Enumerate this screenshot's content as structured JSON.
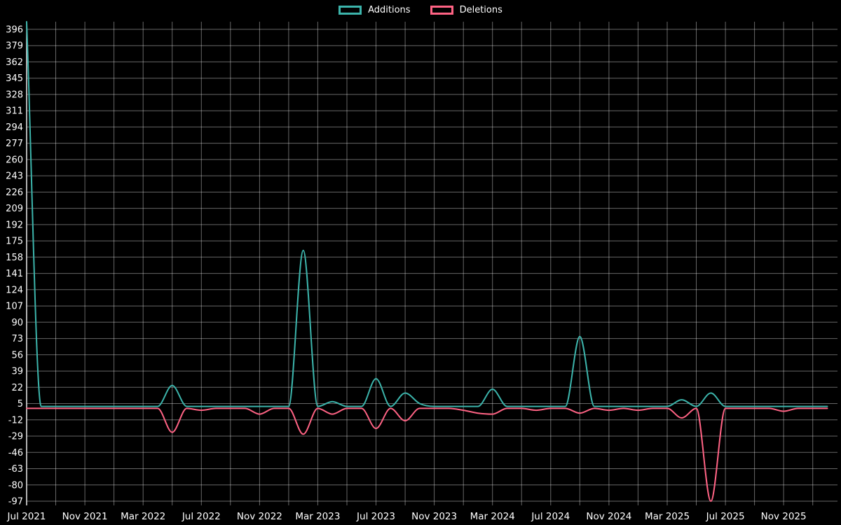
{
  "chart_data": {
    "type": "line",
    "title": "",
    "background_color": "#000000",
    "text_color": "#ffffff",
    "grid_color": "rgba(255,255,255,0.40)",
    "axis_border_color": "rgba(255,255,255,0.9)",
    "legend": {
      "position": "top-center",
      "items": [
        "Additions",
        "Deletions"
      ]
    },
    "x": {
      "unit": "month",
      "labels": [
        "Jul 2021",
        "Aug 2021",
        "Sep 2021",
        "Oct 2021",
        "Nov 2021",
        "Dec 2021",
        "Jan 2022",
        "Feb 2022",
        "Mar 2022",
        "Apr 2022",
        "May 2022",
        "Jun 2022",
        "Jul 2022",
        "Aug 2022",
        "Sep 2022",
        "Oct 2022",
        "Nov 2022",
        "Dec 2022",
        "Jan 2023",
        "Feb 2023",
        "Mar 2023",
        "Apr 2023",
        "May 2023",
        "Jun 2023",
        "Jul 2023",
        "Aug 2023",
        "Sep 2023",
        "Oct 2023",
        "Nov 2023",
        "Dec 2023",
        "Jan 2024",
        "Feb 2024",
        "Mar 2024",
        "Apr 2024",
        "May 2024",
        "Jun 2024",
        "Jul 2024",
        "Aug 2024",
        "Sep 2024",
        "Oct 2024",
        "Nov 2024",
        "Dec 2024",
        "Jan 2025",
        "Feb 2025",
        "Mar 2025",
        "Apr 2025",
        "May 2025",
        "Jun 2025",
        "Jul 2025",
        "Aug 2025",
        "Sep 2025",
        "Oct 2025",
        "Nov 2025",
        "Dec 2025",
        "Jan 2026",
        "Feb 2026"
      ],
      "tick_labels": [
        "Jul 2021",
        "Nov 2021",
        "Mar 2022",
        "Jul 2022",
        "Nov 2022",
        "Mar 2023",
        "Jul 2023",
        "Nov 2023",
        "Mar 2024",
        "Jul 2024",
        "Nov 2024",
        "Mar 2025",
        "Jul 2025",
        "Nov 2025"
      ],
      "tick_every_months": 4,
      "grid_every_months": 2,
      "xlim_months": [
        0,
        55.7
      ]
    },
    "y": {
      "ticks": [
        396,
        379,
        362,
        345,
        328,
        311,
        294,
        277,
        260,
        243,
        226,
        209,
        192,
        175,
        158,
        141,
        124,
        107,
        90,
        73,
        56,
        39,
        22,
        5,
        -12,
        -29,
        -46,
        -63,
        -80,
        -97
      ],
      "tick_step": 17,
      "ylim": [
        -97,
        404
      ]
    },
    "series": [
      {
        "name": "Additions",
        "color": "#3cb4ab",
        "values": [
          404,
          2,
          2,
          2,
          2,
          2,
          2,
          2,
          2,
          2,
          24,
          2,
          2,
          2,
          2,
          2,
          2,
          2,
          2,
          165,
          2,
          7,
          2,
          2,
          31,
          2,
          16,
          5,
          2,
          2,
          2,
          2,
          20,
          2,
          2,
          2,
          2,
          2,
          75,
          2,
          2,
          2,
          2,
          2,
          2,
          9,
          2,
          16,
          2,
          2,
          2,
          2,
          2,
          2,
          2,
          2
        ]
      },
      {
        "name": "Deletions",
        "color": "#ff6384",
        "values": [
          0,
          0,
          0,
          0,
          0,
          0,
          0,
          0,
          0,
          0,
          -25,
          0,
          -2,
          0,
          0,
          0,
          -6,
          0,
          0,
          -27,
          0,
          -6,
          0,
          0,
          -21,
          0,
          -13,
          0,
          0,
          0,
          -2,
          -5,
          -6,
          0,
          0,
          -2,
          0,
          0,
          -5,
          0,
          -2,
          0,
          -2,
          0,
          0,
          -10,
          0,
          -97,
          0,
          0,
          0,
          0,
          -3,
          0,
          0,
          0
        ]
      }
    ]
  }
}
